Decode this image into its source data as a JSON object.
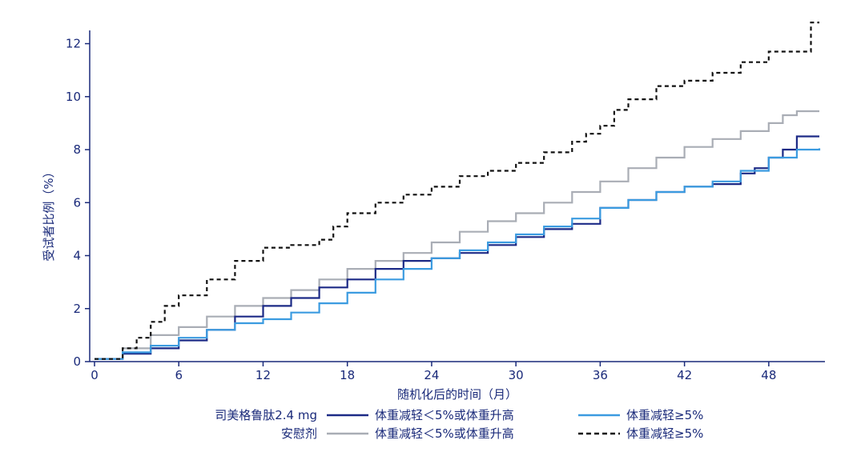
{
  "chart_data": {
    "type": "line",
    "xlabel": "随机化后的时间（月）",
    "ylabel": "受试者比例（%）",
    "xlim": [
      0,
      52
    ],
    "ylim": [
      0,
      12.5
    ],
    "xticks": [
      0,
      6,
      12,
      18,
      24,
      30,
      36,
      42,
      48
    ],
    "yticks": [
      0,
      2,
      4,
      6,
      8,
      10,
      12
    ],
    "grid": false,
    "legend_position": "bottom",
    "legend": {
      "groups": [
        {
          "label": "司美格鲁肽2.4 mg",
          "entries": [
            0,
            1
          ]
        },
        {
          "label": "安慰剂",
          "entries": [
            2,
            3
          ]
        }
      ]
    },
    "series": [
      {
        "name": "体重减轻＜5%或体重升高",
        "group": "司美格鲁肽2.4 mg",
        "color": "#1c2a86",
        "dash": "solid",
        "x": [
          0,
          2,
          4,
          6,
          8,
          10,
          12,
          14,
          16,
          18,
          20,
          22,
          24,
          26,
          28,
          30,
          32,
          34,
          36,
          38,
          40,
          42,
          44,
          46,
          47,
          48,
          49,
          50,
          51.6
        ],
        "y": [
          0.1,
          0.3,
          0.5,
          0.8,
          1.2,
          1.7,
          2.1,
          2.4,
          2.8,
          3.1,
          3.5,
          3.8,
          3.9,
          4.1,
          4.4,
          4.7,
          5.0,
          5.2,
          5.8,
          6.1,
          6.4,
          6.6,
          6.7,
          7.1,
          7.3,
          7.7,
          8.0,
          8.5,
          8.5
        ]
      },
      {
        "name": "体重减轻≥5%",
        "group": "司美格鲁肽2.4 mg",
        "color": "#3b9be0",
        "dash": "solid",
        "x": [
          0,
          2,
          4,
          6,
          8,
          10,
          12,
          14,
          16,
          18,
          20,
          22,
          24,
          26,
          28,
          30,
          32,
          34,
          36,
          38,
          40,
          42,
          44,
          46,
          48,
          50,
          51.6
        ],
        "y": [
          0.1,
          0.35,
          0.6,
          0.9,
          1.2,
          1.45,
          1.6,
          1.85,
          2.2,
          2.6,
          3.1,
          3.5,
          3.9,
          4.2,
          4.5,
          4.8,
          5.1,
          5.4,
          5.8,
          6.1,
          6.4,
          6.6,
          6.8,
          7.2,
          7.7,
          8.0,
          8.05
        ]
      },
      {
        "name": "体重减轻＜5%或体重升高",
        "group": "安慰剂",
        "color": "#a9adb5",
        "dash": "solid",
        "x": [
          0,
          2,
          4,
          6,
          8,
          10,
          12,
          14,
          16,
          18,
          20,
          22,
          24,
          26,
          28,
          30,
          32,
          34,
          36,
          38,
          40,
          42,
          44,
          46,
          48,
          49,
          50,
          51.6
        ],
        "y": [
          0.1,
          0.5,
          1.0,
          1.3,
          1.7,
          2.1,
          2.4,
          2.7,
          3.1,
          3.5,
          3.8,
          4.1,
          4.5,
          4.9,
          5.3,
          5.6,
          6.0,
          6.4,
          6.8,
          7.3,
          7.7,
          8.1,
          8.4,
          8.7,
          9.0,
          9.3,
          9.45,
          9.45
        ]
      },
      {
        "name": "体重减轻≥5%",
        "group": "安慰剂",
        "color": "#111111",
        "dash": "dashed",
        "x": [
          0,
          2,
          3,
          4,
          5,
          6,
          8,
          10,
          12,
          14,
          16,
          17,
          18,
          20,
          22,
          24,
          26,
          28,
          30,
          32,
          34,
          35,
          36,
          37,
          38,
          40,
          42,
          44,
          46,
          48,
          50,
          51,
          51.6
        ],
        "y": [
          0.1,
          0.5,
          0.9,
          1.5,
          2.1,
          2.5,
          3.1,
          3.8,
          4.3,
          4.4,
          4.6,
          5.1,
          5.6,
          6.0,
          6.3,
          6.6,
          7.0,
          7.2,
          7.5,
          7.9,
          8.3,
          8.6,
          8.9,
          9.5,
          9.9,
          10.4,
          10.6,
          10.9,
          11.3,
          11.7,
          11.7,
          12.8,
          12.8
        ]
      }
    ]
  }
}
